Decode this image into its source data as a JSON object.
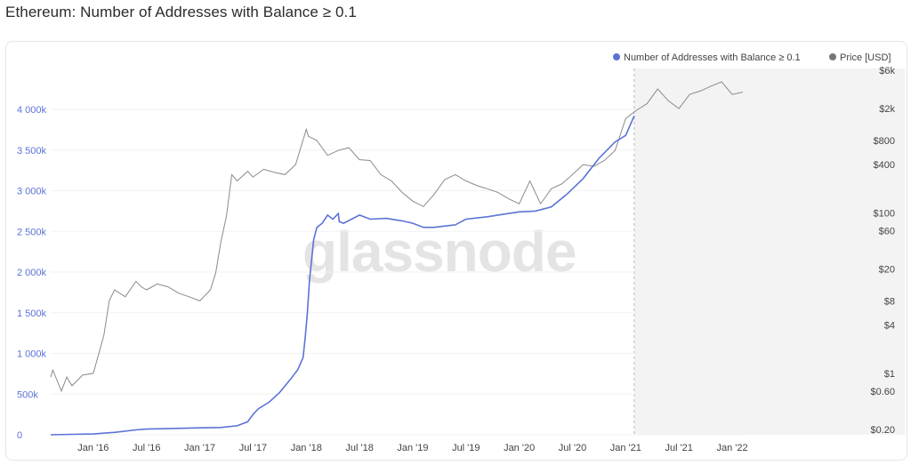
{
  "title": "Ethereum: Number of Addresses with Balance ≥ 0.1",
  "watermark": "glassnode",
  "colors": {
    "addresses": "#5b73d6",
    "price": "#8a8a8a",
    "shade": "#f3f3f3"
  },
  "chart_data": {
    "type": "line",
    "title": "Ethereum: Number of Addresses with Balance ≥ 0.1",
    "legend_position": "top-right",
    "x_ticks": [
      "Jan '16",
      "Jul '16",
      "Jan '17",
      "Jul '17",
      "Jan '18",
      "Jul '18",
      "Jan '19",
      "Jul '19",
      "Jan '20",
      "Jul '20",
      "Jan '21",
      "Jul '21",
      "Jan '22"
    ],
    "x_tick_dates": [
      2016.0,
      2016.5,
      2017.0,
      2017.5,
      2018.0,
      2018.5,
      2019.0,
      2019.5,
      2020.0,
      2020.5,
      2021.0,
      2021.5,
      2022.0
    ],
    "x_range": [
      2015.6,
      2022.1
    ],
    "left_axis": {
      "scale": "linear",
      "ticks": [
        0,
        500000,
        1000000,
        1500000,
        2000000,
        2500000,
        3000000,
        3500000,
        4000000
      ],
      "tick_labels": [
        "0",
        "500k",
        "1 000k",
        "1 500k",
        "2 000k",
        "2 500k",
        "3 000k",
        "3 500k",
        "4 000k"
      ],
      "range": [
        0,
        4000000
      ]
    },
    "right_axis": {
      "scale": "log",
      "ticks": [
        0.2,
        0.6,
        1,
        4,
        8,
        20,
        60,
        100,
        400,
        800,
        2000,
        6000
      ],
      "tick_labels": [
        "$0.20",
        "$0.60",
        "$1",
        "$4",
        "$8",
        "$20",
        "$60",
        "$100",
        "$400",
        "$800",
        "$2k",
        "$6k"
      ]
    },
    "shaded_region": [
      2021.08,
      2022.1
    ],
    "series": [
      {
        "name": "Number of Addresses with Balance ≥ 0.1",
        "axis": "left",
        "x": [
          2015.6,
          2015.8,
          2016.0,
          2016.2,
          2016.4,
          2016.5,
          2016.7,
          2017.0,
          2017.2,
          2017.35,
          2017.45,
          2017.5,
          2017.55,
          2017.65,
          2017.75,
          2017.85,
          2017.92,
          2017.97,
          2017.99,
          2018.01,
          2018.03,
          2018.07,
          2018.1,
          2018.15,
          2018.2,
          2018.25,
          2018.3,
          2018.31,
          2018.35,
          2018.5,
          2018.6,
          2018.75,
          2018.9,
          2019.0,
          2019.1,
          2019.2,
          2019.4,
          2019.5,
          2019.7,
          2019.9,
          2020.0,
          2020.15,
          2020.3,
          2020.45,
          2020.6,
          2020.75,
          2020.9,
          2021.0,
          2021.08
        ],
        "y": [
          0,
          5000,
          10000,
          30000,
          60000,
          70000,
          75000,
          85000,
          90000,
          110000,
          160000,
          250000,
          320000,
          400000,
          520000,
          680000,
          800000,
          950000,
          1200000,
          1500000,
          1900000,
          2400000,
          2550000,
          2600000,
          2700000,
          2650000,
          2720000,
          2620000,
          2600000,
          2700000,
          2650000,
          2660000,
          2630000,
          2600000,
          2550000,
          2550000,
          2580000,
          2650000,
          2680000,
          2720000,
          2740000,
          2750000,
          2800000,
          2960000,
          3150000,
          3400000,
          3600000,
          3680000,
          3920000
        ]
      },
      {
        "name": "Price [USD]",
        "axis": "right",
        "x": [
          2015.6,
          2015.62,
          2015.7,
          2015.75,
          2015.8,
          2015.9,
          2016.0,
          2016.1,
          2016.15,
          2016.2,
          2016.3,
          2016.4,
          2016.45,
          2016.5,
          2016.6,
          2016.7,
          2016.8,
          2016.9,
          2017.0,
          2017.1,
          2017.15,
          2017.2,
          2017.25,
          2017.3,
          2017.35,
          2017.45,
          2017.5,
          2017.6,
          2017.7,
          2017.8,
          2017.9,
          2018.0,
          2018.02,
          2018.1,
          2018.2,
          2018.3,
          2018.4,
          2018.5,
          2018.6,
          2018.7,
          2018.8,
          2018.9,
          2019.0,
          2019.1,
          2019.2,
          2019.3,
          2019.4,
          2019.5,
          2019.6,
          2019.7,
          2019.8,
          2019.9,
          2020.0,
          2020.1,
          2020.2,
          2020.25,
          2020.3,
          2020.4,
          2020.5,
          2020.6,
          2020.7,
          2020.8,
          2020.9,
          2021.0,
          2021.1,
          2021.2,
          2021.3,
          2021.4,
          2021.5,
          2021.6,
          2021.7,
          2021.8,
          2021.9,
          2022.0,
          2022.1
        ],
        "y": [
          0.9,
          1.1,
          0.6,
          0.9,
          0.7,
          0.95,
          1.0,
          3,
          8,
          11,
          9,
          14,
          12,
          11,
          13,
          12,
          10,
          9,
          8,
          11,
          18,
          45,
          90,
          300,
          250,
          330,
          280,
          350,
          320,
          300,
          400,
          1100,
          900,
          800,
          520,
          600,
          650,
          460,
          450,
          300,
          250,
          180,
          140,
          120,
          170,
          260,
          300,
          250,
          220,
          200,
          180,
          150,
          130,
          250,
          130,
          160,
          200,
          230,
          300,
          400,
          380,
          450,
          600,
          1500,
          1900,
          2300,
          3500,
          2500,
          2000,
          3000,
          3300,
          3800,
          4300,
          3000,
          3200
        ]
      }
    ]
  }
}
